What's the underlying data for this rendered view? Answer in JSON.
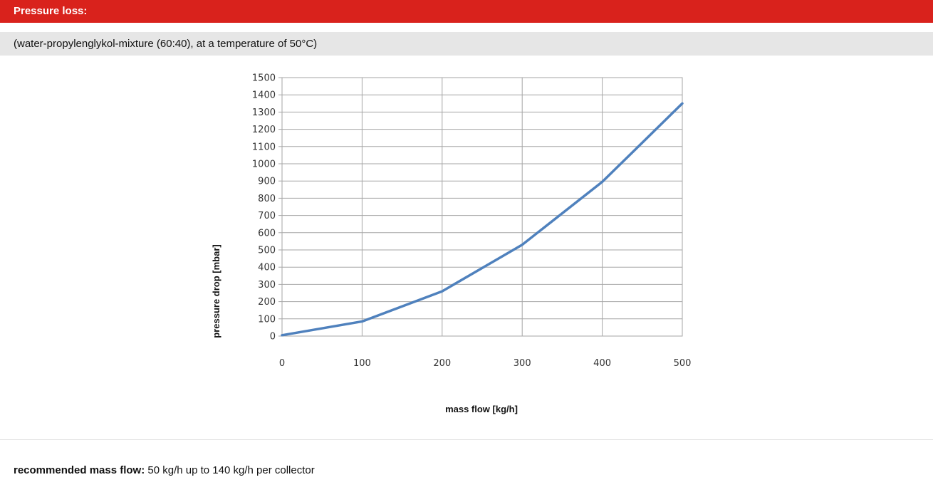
{
  "header": {
    "title": "Pressure loss:",
    "subtitle": "(water-propylenglykol-mixture (60:40), at a temperature of 50°C)",
    "accent_color": "#d9221c"
  },
  "chart_data": {
    "type": "line",
    "xlabel": "mass flow [kg/h]",
    "ylabel": "pressure drop [mbar]",
    "xlim": [
      0,
      500
    ],
    "ylim": [
      0,
      1500
    ],
    "x_ticks": [
      0,
      100,
      200,
      300,
      400,
      500
    ],
    "y_ticks": [
      0,
      100,
      200,
      300,
      400,
      500,
      600,
      700,
      800,
      900,
      1000,
      1100,
      1200,
      1300,
      1400,
      1500
    ],
    "grid": true,
    "series": [
      {
        "color": "#4f81bd",
        "x": [
          0,
          100,
          200,
          300,
          400,
          500
        ],
        "y": [
          5,
          85,
          260,
          530,
          895,
          1350
        ]
      }
    ]
  },
  "footer": {
    "label": "recommended mass flow:",
    "text": "50 kg/h up to 140 kg/h per collector"
  }
}
